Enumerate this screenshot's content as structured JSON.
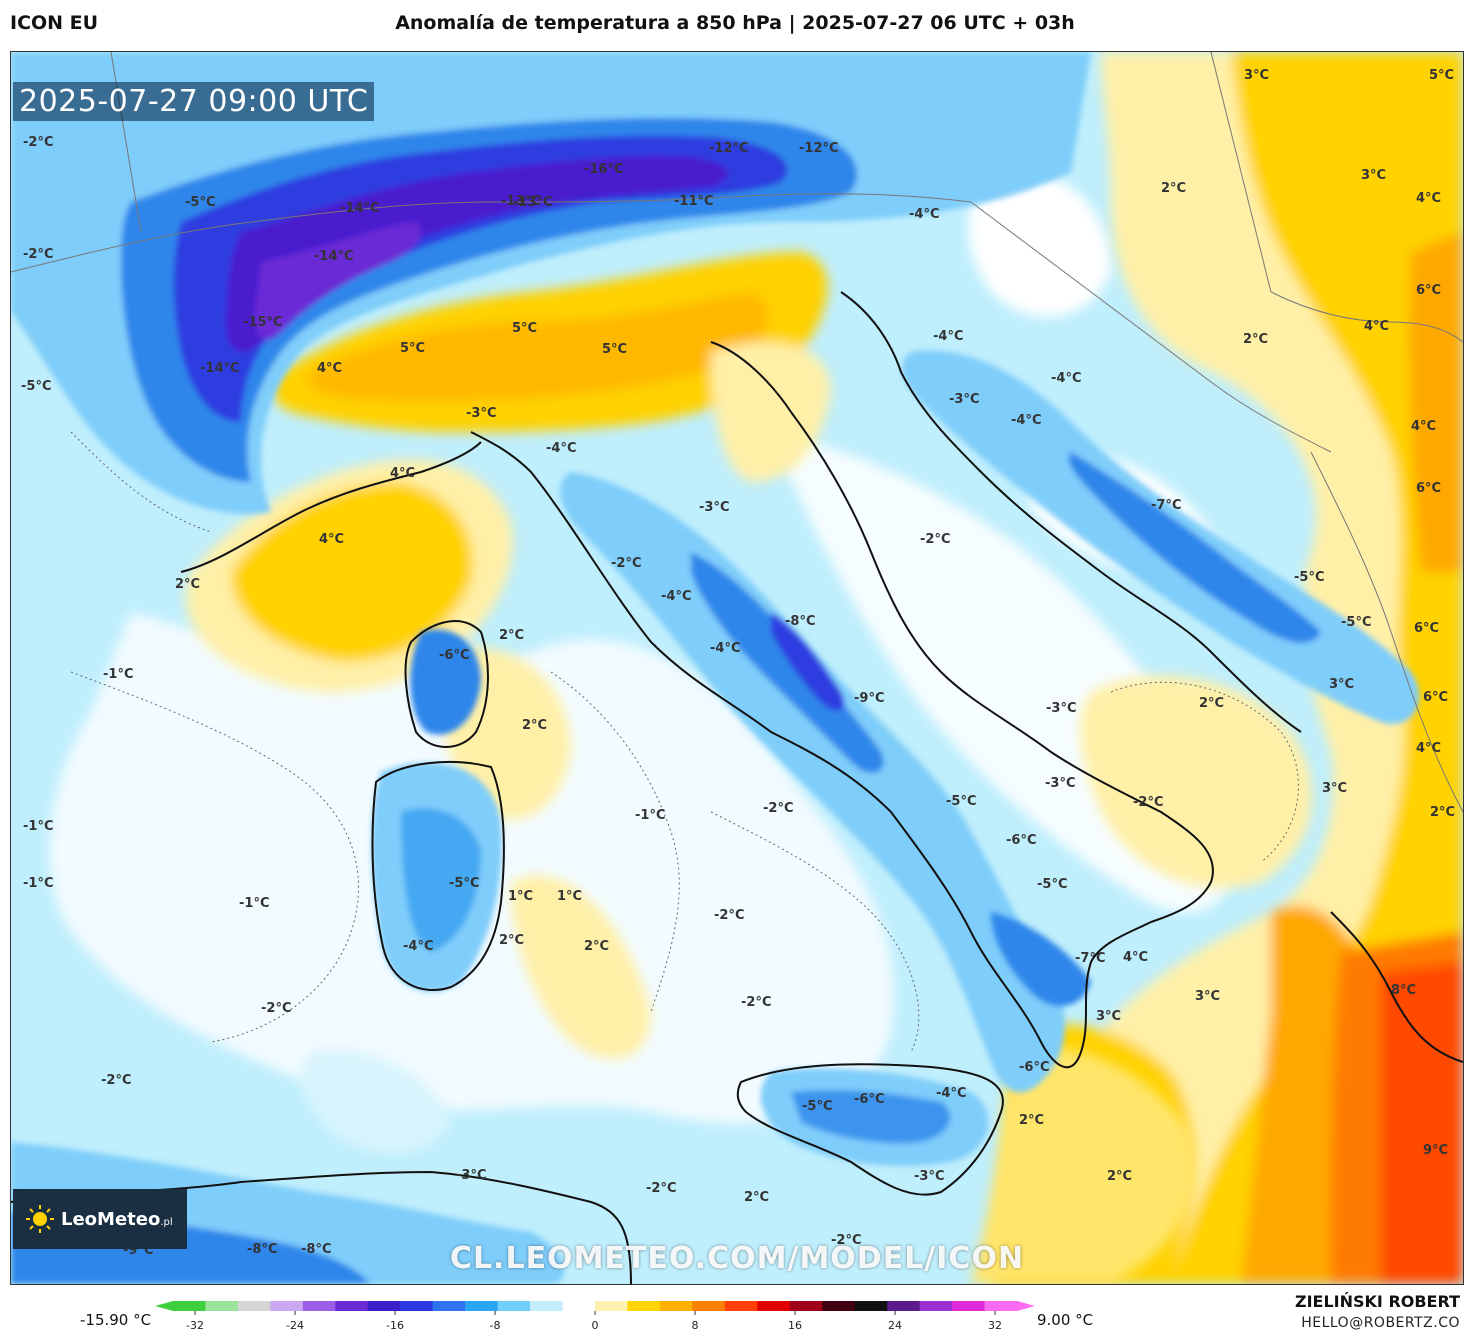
{
  "header": {
    "model": "ICON EU",
    "title": "Anomalía de temperatura a 850 hPa | 2025-07-27 06 UTC + 03h"
  },
  "map": {
    "timestamp": "2025-07-27 09:00 UTC",
    "watermark": "CL.LEOMETEO.COM/MODEL/ICON",
    "logo": {
      "name": "LeoMeteo",
      "suffix": ".pl",
      "icon": "sun-icon"
    },
    "labels": [
      "-2°C",
      "-5°C",
      "-2°C",
      "-5°C",
      "-14°C",
      "-14°C",
      "-15°C",
      "-14°C",
      "-13°C",
      "-16°C",
      "-13°C",
      "-12°C",
      "-12°C",
      "-11°C",
      "-4°C",
      "5°C",
      "5°C",
      "5°C",
      "4°C",
      "-3°C",
      "-4°C",
      "4°C",
      "4°C",
      "2°C",
      "-3°C",
      "-2°C",
      "-4°C",
      "-8°C",
      "-4°C",
      "-9°C",
      "-6°C",
      "2°C",
      "2°C",
      "-1°C",
      "-1°C",
      "-1°C",
      "-1°C",
      "-5°C",
      "-4°C",
      "1°C",
      "1°C",
      "2°C",
      "2°C",
      "-2°C",
      "-2°C",
      "-1°C",
      "-2°C",
      "-2°C",
      "-2°C",
      "-2°C",
      "-2°C",
      "-2°C",
      "-9°C",
      "-8°C",
      "-8°C",
      "-5°C",
      "-6°C",
      "-4°C",
      "-3°C",
      "-3°C",
      "-5°C",
      "-6°C",
      "-5°C",
      "-7°C",
      "4°C",
      "3°C",
      "3°C",
      "-6°C",
      "2°C",
      "2°C",
      "-3°C",
      "-3°C",
      "-2°C",
      "2°C",
      "-4°C",
      "-3°C",
      "-4°C",
      "-7°C",
      "-5°C",
      "-5°C",
      "3°C",
      "2°C",
      "2°C",
      "4°C",
      "4°C",
      "6°C",
      "6°C",
      "6°C",
      "6°C",
      "3°C",
      "4°C",
      "3°C",
      "2°C",
      "8°C",
      "9°C",
      "3°C",
      "5°C",
      "4°C",
      "2°C",
      "-4°C"
    ]
  },
  "legend": {
    "min_label": "-15.90 °C",
    "max_label": "9.00 °C",
    "ticks": [
      "-32",
      "-24",
      "-16",
      "-8",
      "0",
      "8",
      "16",
      "24",
      "32"
    ],
    "colors": [
      "#3ecf3e",
      "#9be39b",
      "#d6d6d6",
      "#c9a9ef",
      "#9b5fe6",
      "#6a2ad6",
      "#3b1fc8",
      "#2d39e0",
      "#2f73ee",
      "#2aa7f4",
      "#6fd0fb",
      "#c5eefd",
      "#ffffff",
      "#fff2b0",
      "#ffd400",
      "#ffb000",
      "#ff8000",
      "#ff4000",
      "#e00000",
      "#a00018",
      "#400010",
      "#101010",
      "#5a1a8a",
      "#9c2fd0",
      "#e02ad8",
      "#ff6bf0"
    ]
  },
  "footer": {
    "author": "ZIELIŃSKI ROBERT",
    "email": "HELLO@ROBERTZ.CO"
  }
}
